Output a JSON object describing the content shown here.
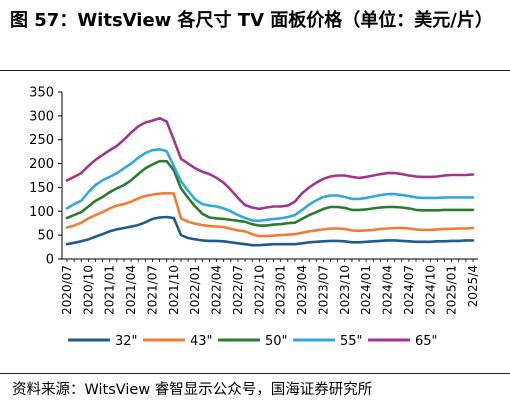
{
  "title": "图 57：WitsView 各尺寸 TV 面板价格（单位：美元/片）",
  "source": "资料来源：WitsView 睿智显示公众号，国海证券研究所",
  "chart_data": {
    "type": "line",
    "title": "",
    "xlabel": "",
    "ylabel": "",
    "ylim": [
      0,
      350
    ],
    "yticks": [
      0,
      50,
      100,
      150,
      200,
      250,
      300,
      350
    ],
    "x": [
      "2020/07",
      "2020/08",
      "2020/09",
      "2020/10",
      "2020/11",
      "2020/12",
      "2021/01",
      "2021/02",
      "2021/03",
      "2021/04",
      "2021/05",
      "2021/06",
      "2021/07",
      "2021/08",
      "2021/09",
      "2021/10",
      "2021/11",
      "2021/12",
      "2022/01",
      "2022/02",
      "2022/03",
      "2022/04",
      "2022/05",
      "2022/06",
      "2022/07",
      "2022/08",
      "2022/09",
      "2022/10",
      "2022/11",
      "2022/12",
      "2023/01",
      "2023/02",
      "2023/03",
      "2023/04",
      "2023/05",
      "2023/06",
      "2023/07",
      "2023/08",
      "2023/09",
      "2023/10",
      "2023/11",
      "2023/12",
      "2024/01",
      "2024/02",
      "2024/03",
      "2024/04",
      "2024/05",
      "2024/06",
      "2024/07",
      "2024/08",
      "2024/09",
      "2024/10",
      "2024/11",
      "2024/12",
      "2025/01",
      "2025/02",
      "2025/03",
      "2025/04"
    ],
    "xtick_labels": [
      "2020/07",
      "2020/10",
      "2021/01",
      "2021/04",
      "2021/07",
      "2021/10",
      "2022/01",
      "2022/04",
      "2022/07",
      "2022/10",
      "2023/01",
      "2023/04",
      "2023/07",
      "2023/10",
      "2024/01",
      "2024/04",
      "2024/07",
      "2024/10",
      "2025/01",
      "2025/4"
    ],
    "series": [
      {
        "name": "32\"",
        "color": "#1f5c8b",
        "values": [
          31,
          34,
          37,
          41,
          47,
          52,
          58,
          62,
          65,
          68,
          71,
          77,
          84,
          87,
          88,
          86,
          50,
          44,
          41,
          39,
          38,
          38,
          37,
          35,
          33,
          31,
          29,
          29,
          30,
          31,
          31,
          31,
          31,
          33,
          35,
          36,
          37,
          38,
          38,
          37,
          35,
          35,
          36,
          37,
          38,
          39,
          39,
          38,
          37,
          36,
          36,
          36,
          37,
          37,
          38,
          38,
          39,
          39
        ]
      },
      {
        "name": "43\"",
        "color": "#f07d34",
        "values": [
          66,
          70,
          76,
          85,
          92,
          98,
          106,
          112,
          115,
          120,
          127,
          132,
          135,
          137,
          138,
          137,
          85,
          78,
          74,
          71,
          69,
          68,
          67,
          63,
          60,
          58,
          52,
          48,
          48,
          49,
          50,
          51,
          52,
          55,
          58,
          60,
          62,
          64,
          64,
          63,
          60,
          59,
          60,
          61,
          63,
          64,
          65,
          65,
          64,
          62,
          61,
          61,
          62,
          63,
          63,
          64,
          64,
          65
        ]
      },
      {
        "name": "50\"",
        "color": "#2a7d2e",
        "values": [
          86,
          92,
          98,
          110,
          122,
          130,
          140,
          148,
          155,
          165,
          178,
          190,
          198,
          205,
          205,
          186,
          148,
          128,
          110,
          95,
          87,
          85,
          84,
          82,
          80,
          78,
          73,
          70,
          70,
          72,
          73,
          75,
          76,
          84,
          92,
          98,
          105,
          109,
          109,
          107,
          103,
          103,
          104,
          106,
          108,
          109,
          109,
          108,
          106,
          103,
          102,
          102,
          102,
          103,
          103,
          103,
          103,
          103
        ]
      },
      {
        "name": "55\"",
        "color": "#30a8dc",
        "values": [
          106,
          115,
          122,
          140,
          155,
          165,
          172,
          180,
          190,
          200,
          212,
          222,
          228,
          230,
          226,
          195,
          163,
          143,
          125,
          115,
          112,
          110,
          106,
          100,
          92,
          86,
          81,
          80,
          82,
          84,
          85,
          88,
          92,
          103,
          114,
          123,
          130,
          133,
          133,
          130,
          126,
          126,
          128,
          131,
          134,
          136,
          136,
          134,
          132,
          129,
          128,
          128,
          128,
          129,
          129,
          129,
          129,
          129
        ]
      },
      {
        "name": "65\"",
        "color": "#a3358e",
        "values": [
          165,
          172,
          180,
          195,
          208,
          218,
          228,
          237,
          250,
          265,
          278,
          286,
          290,
          295,
          288,
          250,
          210,
          200,
          190,
          183,
          178,
          170,
          160,
          145,
          128,
          113,
          108,
          105,
          108,
          110,
          110,
          112,
          120,
          138,
          150,
          160,
          168,
          173,
          175,
          175,
          172,
          170,
          172,
          175,
          178,
          180,
          180,
          178,
          175,
          173,
          172,
          172,
          173,
          175,
          176,
          176,
          176,
          177
        ]
      }
    ],
    "legend_position": "bottom",
    "grid": false
  }
}
